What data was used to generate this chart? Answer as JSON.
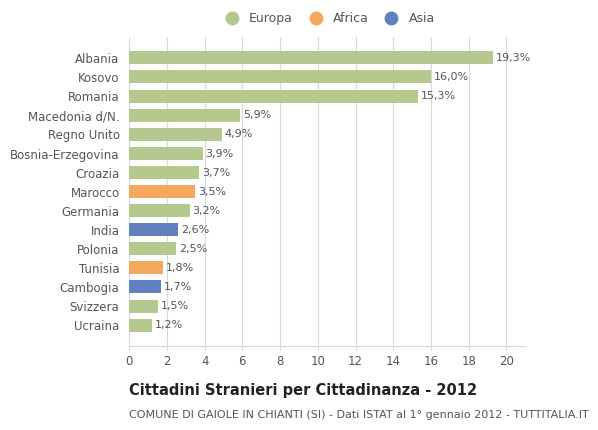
{
  "categories": [
    "Albania",
    "Kosovo",
    "Romania",
    "Macedonia d/N.",
    "Regno Unito",
    "Bosnia-Erzegovina",
    "Croazia",
    "Marocco",
    "Germania",
    "India",
    "Polonia",
    "Tunisia",
    "Cambogia",
    "Svizzera",
    "Ucraina"
  ],
  "values": [
    19.3,
    16.0,
    15.3,
    5.9,
    4.9,
    3.9,
    3.7,
    3.5,
    3.2,
    2.6,
    2.5,
    1.8,
    1.7,
    1.5,
    1.2
  ],
  "continents": [
    "Europa",
    "Europa",
    "Europa",
    "Europa",
    "Europa",
    "Europa",
    "Europa",
    "Africa",
    "Europa",
    "Asia",
    "Europa",
    "Africa",
    "Asia",
    "Europa",
    "Europa"
  ],
  "colors": {
    "Europa": "#b5c98e",
    "Africa": "#f4a85e",
    "Asia": "#6080c0"
  },
  "legend_items": [
    "Europa",
    "Africa",
    "Asia"
  ],
  "title": "Cittadini Stranieri per Cittadinanza - 2012",
  "subtitle": "COMUNE DI GAIOLE IN CHIANTI (SI) - Dati ISTAT al 1° gennaio 2012 - TUTTITALIA.IT",
  "xlim": [
    0,
    21
  ],
  "xticks": [
    0,
    2,
    4,
    6,
    8,
    10,
    12,
    14,
    16,
    18,
    20
  ],
  "bg_color": "#ffffff",
  "grid_color": "#d8d8d8",
  "bar_height": 0.68,
  "title_fontsize": 10.5,
  "subtitle_fontsize": 8,
  "tick_fontsize": 8.5,
  "value_fontsize": 8,
  "legend_fontsize": 9,
  "text_color": "#555555",
  "title_color": "#222222"
}
